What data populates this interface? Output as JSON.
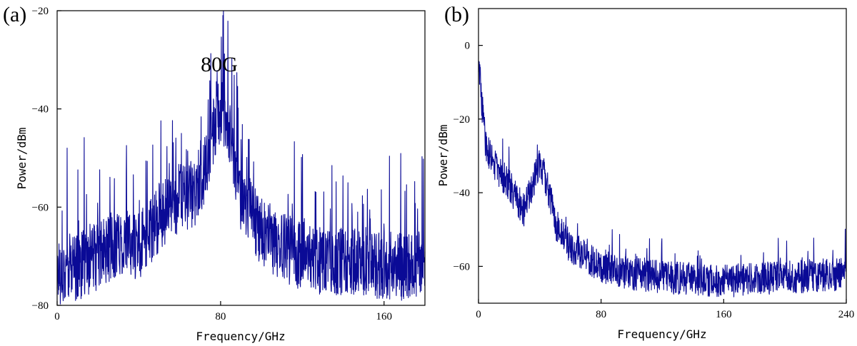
{
  "chart_data": [
    {
      "type": "line",
      "panel_label": "(a)",
      "annotation": "80G",
      "xlabel": "Frequency/GHz",
      "ylabel": "Power/dBm",
      "xlim": [
        0,
        180
      ],
      "ylim": [
        -80,
        -20
      ],
      "xticks": [
        0,
        80,
        160
      ],
      "yticks": [
        -80,
        -60,
        -40,
        -20
      ],
      "grid": false,
      "color": "#0a0a96",
      "series": [
        {
          "description_points": {
            "x": [
              0,
              10,
              20,
              30,
              40,
              50,
              60,
              70,
              75,
              78,
              80,
              82,
              85,
              90,
              100,
              110,
              120,
              130,
              140,
              150,
              160,
              170,
              180
            ],
            "y": [
              -73,
              -72,
              -70,
              -67,
              -68,
              -62,
              -58,
              -57,
              -47,
              -42,
              -41,
              -42,
              -46,
              -58,
              -65,
              -68,
              -70,
              -71,
              -71,
              -71,
              -72,
              -72,
              -72
            ]
          }
        }
      ]
    },
    {
      "type": "line",
      "panel_label": "(b)",
      "xlabel": "Frequency/GHz",
      "ylabel": "Power/dBm",
      "xlim": [
        0,
        240
      ],
      "ylim": [
        -70,
        10
      ],
      "xticks": [
        0,
        80,
        160,
        240
      ],
      "yticks": [
        -60,
        -40,
        -20,
        0
      ],
      "grid": false,
      "color": "#0a0a96",
      "series": [
        {
          "description_points": {
            "x": [
              0,
              2,
              5,
              10,
              20,
              30,
              35,
              40,
              45,
              50,
              60,
              80,
              100,
              120,
              160,
              200,
              240
            ],
            "y": [
              -5,
              -15,
              -28,
              -32,
              -38,
              -45,
              -38,
              -32,
              -38,
              -48,
              -55,
              -60,
              -62,
              -63,
              -64,
              -63,
              -62
            ]
          }
        }
      ]
    }
  ]
}
